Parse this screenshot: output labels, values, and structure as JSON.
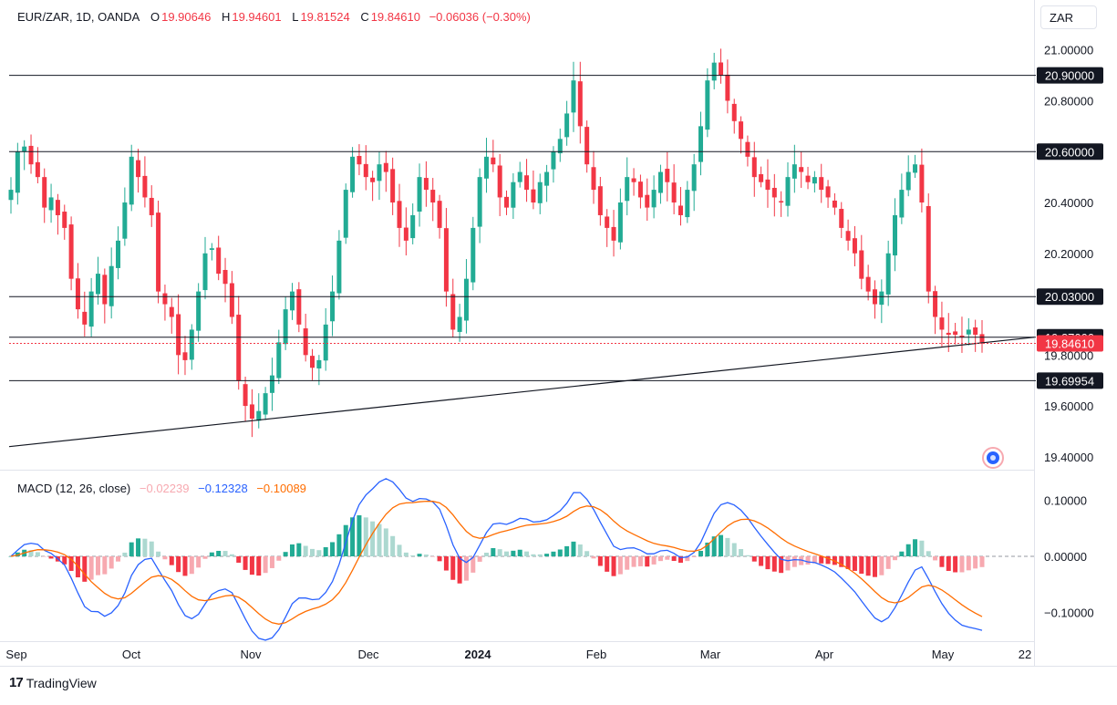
{
  "header": {
    "symbol": "EUR/ZAR, 1D, OANDA",
    "open_label": "O",
    "open": "19.90646",
    "high_label": "H",
    "high": "19.94601",
    "low_label": "L",
    "low": "19.81524",
    "close_label": "C",
    "close": "19.84610",
    "change": "−0.06036 (−0.30%)",
    "currency": "ZAR"
  },
  "macd_legend": {
    "title": "MACD (12, 26, close)",
    "histogram": "−0.02239",
    "macd": "−0.12328",
    "signal": "−0.10089"
  },
  "brand": {
    "logo": "17",
    "name": "TradingView"
  },
  "colors": {
    "up": "#22ab94",
    "down": "#f23645",
    "up_light": "#acd8d0",
    "down_light": "#f7a9b0",
    "macd_line": "#2962ff",
    "signal_line": "#ff6d00",
    "price_tag": "#f23645",
    "level_tag": "#131722"
  },
  "chart_data": [
    {
      "type": "candlestick",
      "title": "EUR/ZAR, 1D, OANDA",
      "y_axis_labels": [
        "21.00000",
        "20.80000",
        "20.40000",
        "20.20000",
        "19.80000",
        "19.60000",
        "19.40000"
      ],
      "ylim": [
        19.36,
        21.06
      ],
      "x_axis_labels": [
        "Sep",
        "Oct",
        "Nov",
        "Dec",
        "2024",
        "Feb",
        "Mar",
        "Apr",
        "May",
        "22"
      ],
      "horizontal_levels": [
        "20.90000",
        "20.60000",
        "20.03000",
        "19.87000",
        "19.69954"
      ],
      "last_price": "19.84610",
      "trendline": {
        "from": {
          "x": "Sep",
          "y": 19.44
        },
        "to": {
          "x": "May",
          "y": 19.87
        }
      },
      "closes_approx": [
        20.45,
        20.6,
        20.62,
        20.55,
        20.5,
        20.38,
        20.42,
        20.35,
        20.3,
        20.1,
        19.98,
        19.92,
        20.05,
        20.12,
        20.0,
        20.15,
        20.25,
        20.4,
        20.58,
        20.5,
        20.42,
        20.35,
        20.05,
        20.0,
        19.95,
        19.8,
        19.78,
        19.9,
        20.05,
        20.2,
        20.22,
        20.12,
        20.08,
        19.95,
        19.7,
        19.6,
        19.55,
        19.58,
        19.65,
        19.72,
        19.85,
        19.98,
        20.05,
        19.92,
        19.8,
        19.75,
        19.78,
        19.92,
        20.05,
        20.25,
        20.45,
        20.58,
        20.55,
        20.5,
        20.48,
        20.55,
        20.52,
        20.4,
        20.3,
        20.25,
        20.35,
        20.5,
        20.45,
        20.4,
        20.3,
        20.05,
        19.9,
        19.95,
        20.1,
        20.3,
        20.5,
        20.58,
        20.55,
        20.42,
        20.38,
        20.48,
        20.52,
        20.45,
        20.4,
        20.48,
        20.52,
        20.6,
        20.65,
        20.75,
        20.88,
        20.7,
        20.55,
        20.45,
        20.35,
        20.3,
        20.25,
        20.4,
        20.5,
        20.48,
        20.42,
        20.38,
        20.45,
        20.52,
        20.48,
        20.4,
        20.35,
        20.45,
        20.55,
        20.7,
        20.88,
        20.95,
        20.9,
        20.8,
        20.72,
        20.65,
        20.58,
        20.5,
        20.48,
        20.45,
        20.42,
        20.4,
        20.5,
        20.55,
        20.52,
        20.48,
        20.5,
        20.45,
        20.42,
        20.38,
        20.3,
        20.25,
        20.2,
        20.1,
        20.05,
        20.0,
        20.05,
        20.2,
        20.35,
        20.45,
        20.52,
        20.55,
        20.4,
        20.05,
        19.95,
        19.9,
        19.88,
        19.88,
        19.87,
        19.9,
        19.88,
        19.85
      ]
    },
    {
      "type": "macd",
      "title": "MACD (12, 26, close)",
      "y_axis_labels": [
        "0.10000",
        "0.00000",
        "−0.10000"
      ],
      "ylim": [
        -0.155,
        0.155
      ],
      "series": [
        {
          "name": "MACD",
          "last": "−0.12328"
        },
        {
          "name": "Signal",
          "last": "−0.10089"
        },
        {
          "name": "Histogram",
          "last": "−0.02239"
        }
      ]
    }
  ]
}
